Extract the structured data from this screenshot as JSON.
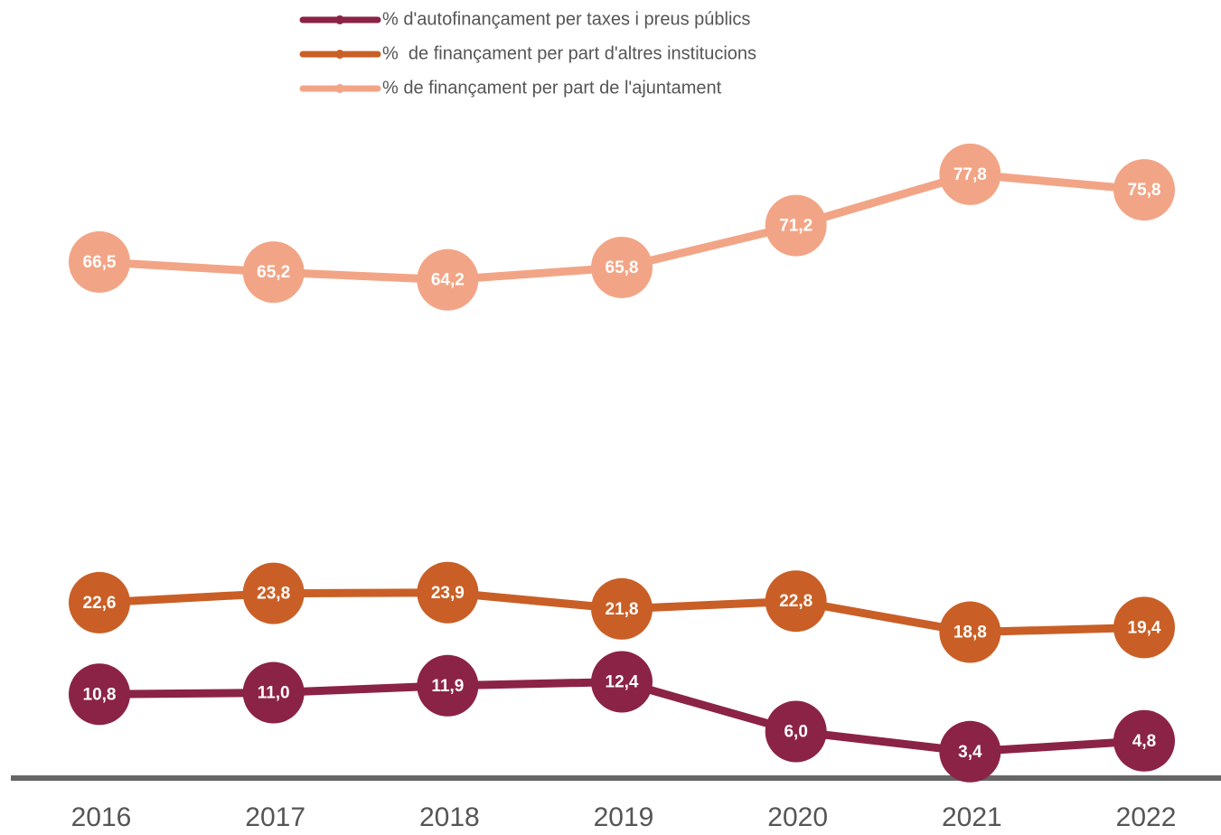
{
  "chart_data": {
    "type": "line",
    "categories": [
      "2016",
      "2017",
      "2018",
      "2019",
      "2020",
      "2021",
      "2022"
    ],
    "ylim": [
      0,
      80
    ],
    "series": [
      {
        "name": "% d'autofinançament per taxes i preus públics",
        "color": "#8b2346",
        "values": [
          10.8,
          11.0,
          11.9,
          12.4,
          6.0,
          3.4,
          4.8
        ],
        "value_labels": [
          "10,8",
          "11,0",
          "11,9",
          "12,4",
          "6,0",
          "3,4",
          "4,8"
        ]
      },
      {
        "name": "%  de finançament per part d'altres institucions",
        "color": "#c95f26",
        "values": [
          22.6,
          23.8,
          23.9,
          21.8,
          22.8,
          18.8,
          19.4
        ],
        "value_labels": [
          "22,6",
          "23,8",
          "23,9",
          "21,8",
          "22,8",
          "18,8",
          "19,4"
        ]
      },
      {
        "name": "% de finançament per part de l'ajuntament",
        "color": "#f2a586",
        "values": [
          66.5,
          65.2,
          64.2,
          65.8,
          71.2,
          77.8,
          75.8
        ],
        "value_labels": [
          "66,5",
          "65,2",
          "64,2",
          "65,8",
          "71,2",
          "77,8",
          "75,8"
        ]
      }
    ]
  }
}
